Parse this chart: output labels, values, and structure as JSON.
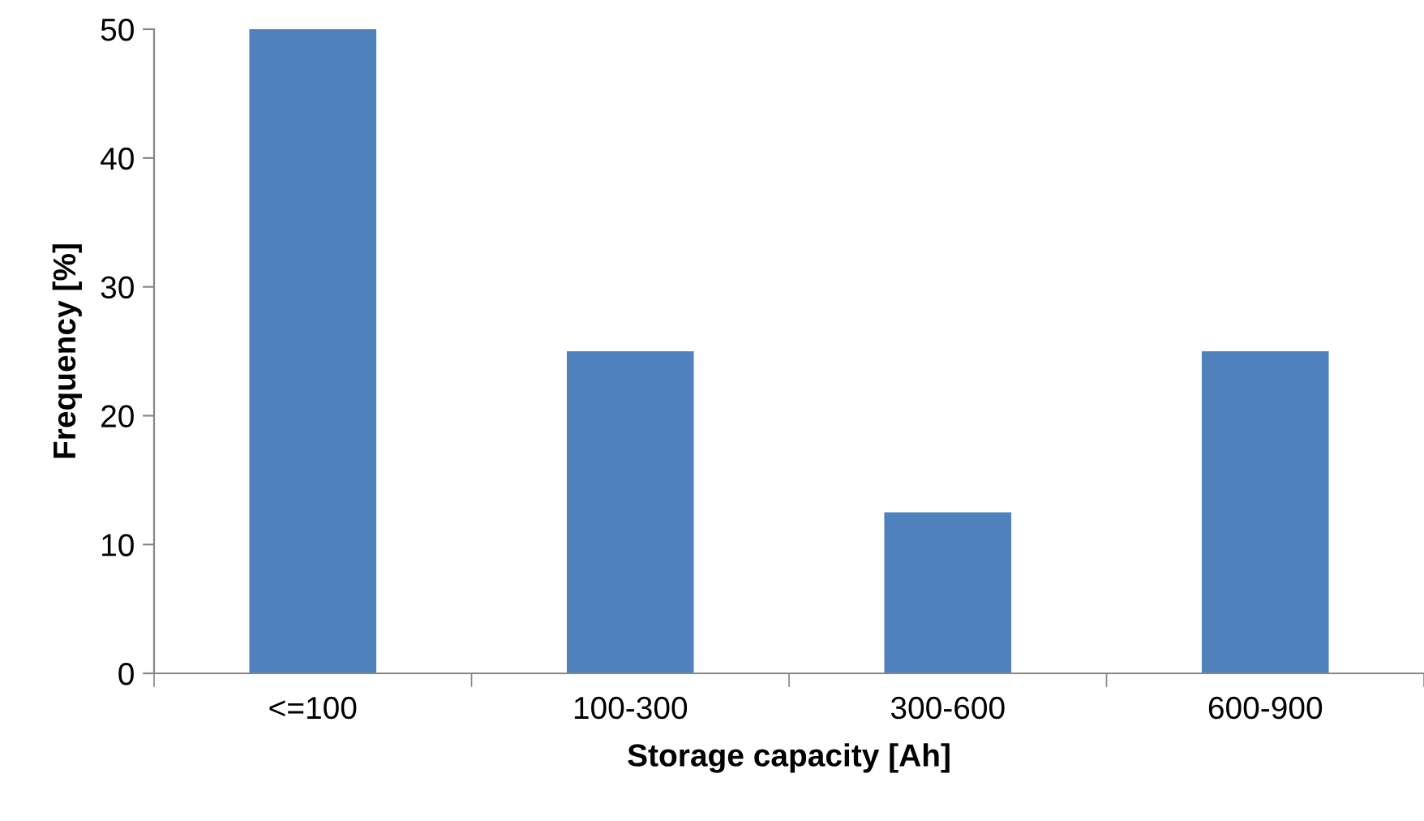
{
  "chart_data": {
    "type": "bar",
    "categories": [
      "<=100",
      "100-300",
      "300-600",
      "600-900"
    ],
    "values": [
      50,
      25,
      12.5,
      25
    ],
    "color": "#4f81bd",
    "xlabel": "Storage capacity [Ah]",
    "ylabel": "Frequency [%]",
    "ylim": [
      0,
      50
    ],
    "yticks": [
      0,
      10,
      20,
      30,
      40,
      50
    ],
    "grid": false
  }
}
